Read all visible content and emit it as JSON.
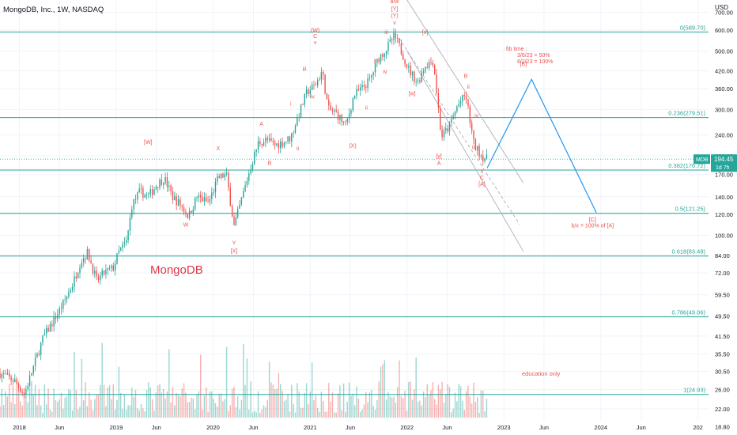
{
  "header": {
    "title": "MongoDB, Inc., 1W, NASDAQ",
    "currency": "USD"
  },
  "colors": {
    "up": "#26a69a",
    "down": "#ef5350",
    "fib": "#26a69a",
    "wave_label": "#ef5350",
    "projection": "#2196f3",
    "channel": "#b0b0b0",
    "watermark": "#e0364a",
    "price_badge": "#26a69a"
  },
  "watermark": "MongoDB",
  "note_education": "education only",
  "fib_time_note": [
    "fib time :",
    "3/6/23 = 50%",
    "8/7/23 = 100%"
  ],
  "price_badge": {
    "symbol": "MDB",
    "price": "194.45",
    "countdown": "1d 7h"
  },
  "chart_data": {
    "type": "candlestick",
    "title": "MongoDB, Inc., 1W, NASDAQ",
    "y_scale": "log",
    "ylim": [
      17.5,
      780
    ],
    "y_ticks": [
      18.8,
      22,
      26,
      30.5,
      35.5,
      41.5,
      49.5,
      59.5,
      72,
      84,
      100,
      120,
      140,
      170,
      200,
      240,
      300,
      360,
      420,
      500,
      600,
      700
    ],
    "y_tick_labels": [
      "18.80",
      "22.00",
      "26.00",
      "30.50",
      "35.50",
      "41.50",
      "49.50",
      "59.50",
      "72.00",
      "84.00",
      "100.00",
      "120.00",
      "140.00",
      "170.00",
      "200.00",
      "240.00",
      "300.00",
      "360.00",
      "420.00",
      "500.00",
      "600.00",
      "700.00"
    ],
    "x_axis_labels": [
      "2018",
      "Jun",
      "2019",
      "Jun",
      "2020",
      "Jun",
      "2021",
      "Jun",
      "2022",
      "Jun",
      "2023",
      "Jun",
      "2024",
      "Jun",
      "202"
    ],
    "x_axis_dates": [
      "2018-01-01",
      "2018-06-01",
      "2019-01-01",
      "2019-06-01",
      "2020-01-01",
      "2020-06-01",
      "2021-01-01",
      "2021-06-01",
      "2022-01-01",
      "2022-06-01",
      "2023-01-01",
      "2023-06-01",
      "2024-01-01",
      "2024-06-01",
      "2025-01-01"
    ],
    "x_range_dates": [
      "2017-10-20",
      "2025-02-10"
    ],
    "fib_levels": [
      {
        "label": "0(589.70)",
        "value": 589.7
      },
      {
        "label": "0.236(279.51)",
        "value": 279.51
      },
      {
        "label": "0.382(176.72)",
        "value": 176.72
      },
      {
        "label": "0.5(121.25)",
        "value": 121.25
      },
      {
        "label": "0.618(83.48)",
        "value": 83.48
      },
      {
        "label": "0.786(49.06)",
        "value": 49.06
      },
      {
        "label": "1(24.93)",
        "value": 24.93
      }
    ],
    "last_price": 194.45,
    "price_path": [
      [
        "2017-10-20",
        30
      ],
      [
        "2017-12-15",
        28
      ],
      [
        "2018-01-20",
        25
      ],
      [
        "2018-03-01",
        33
      ],
      [
        "2018-04-01",
        41
      ],
      [
        "2018-05-01",
        46
      ],
      [
        "2018-06-15",
        55
      ],
      [
        "2018-07-20",
        65
      ],
      [
        "2018-08-20",
        80
      ],
      [
        "2018-09-15",
        86
      ],
      [
        "2018-10-20",
        67
      ],
      [
        "2018-11-15",
        72
      ],
      [
        "2018-12-20",
        75
      ],
      [
        "2019-01-10",
        86
      ],
      [
        "2019-02-10",
        95
      ],
      [
        "2019-03-01",
        130
      ],
      [
        "2019-04-01",
        147
      ],
      [
        "2019-05-01",
        140
      ],
      [
        "2019-06-01",
        155
      ],
      [
        "2019-07-01",
        165
      ],
      [
        "2019-08-01",
        140
      ],
      [
        "2019-09-01",
        130
      ],
      [
        "2019-10-01",
        118
      ],
      [
        "2019-11-01",
        140
      ],
      [
        "2019-12-15",
        133
      ],
      [
        "2020-01-20",
        165
      ],
      [
        "2020-02-20",
        170
      ],
      [
        "2020-03-20",
        108
      ],
      [
        "2020-04-20",
        140
      ],
      [
        "2020-05-20",
        180
      ],
      [
        "2020-06-20",
        225
      ],
      [
        "2020-07-20",
        230
      ],
      [
        "2020-08-20",
        220
      ],
      [
        "2020-09-20",
        225
      ],
      [
        "2020-10-20",
        235
      ],
      [
        "2020-11-20",
        290
      ],
      [
        "2020-12-20",
        350
      ],
      [
        "2021-01-20",
        370
      ],
      [
        "2021-02-15",
        420
      ],
      [
        "2021-03-10",
        300
      ],
      [
        "2021-04-10",
        290
      ],
      [
        "2021-05-15",
        260
      ],
      [
        "2021-06-15",
        340
      ],
      [
        "2021-07-15",
        360
      ],
      [
        "2021-08-15",
        390
      ],
      [
        "2021-09-15",
        470
      ],
      [
        "2021-10-15",
        510
      ],
      [
        "2021-11-15",
        570
      ],
      [
        "2021-12-10",
        500
      ],
      [
        "2022-01-10",
        420
      ],
      [
        "2022-02-10",
        380
      ],
      [
        "2022-03-10",
        440
      ],
      [
        "2022-04-10",
        460
      ],
      [
        "2022-05-10",
        235
      ],
      [
        "2022-06-10",
        260
      ],
      [
        "2022-07-10",
        310
      ],
      [
        "2022-08-10",
        340
      ],
      [
        "2022-09-10",
        220
      ],
      [
        "2022-10-10",
        200
      ],
      [
        "2022-10-30",
        194.45
      ]
    ],
    "volume_pattern": "weekly volume bars, colored green on up weeks and red on down weeks",
    "channel_lines": [
      {
        "from": [
          "2022-01-01",
          780
        ],
        "to": [
          "2023-03-15",
          158
        ]
      },
      {
        "from": [
          "2021-12-01",
          560
        ],
        "to": [
          "2023-03-01",
          110
        ]
      },
      {
        "from": [
          "2022-01-01",
          500
        ],
        "to": [
          "2023-03-15",
          87
        ]
      }
    ],
    "projection_path": [
      [
        "2022-10-30",
        180
      ],
      [
        "2023-04-15",
        390
      ],
      [
        "2023-12-15",
        122
      ]
    ],
    "wave_labels": [
      {
        "text": "a/w",
        "date": "2021-11-15",
        "price": 760
      },
      {
        "text": "[Y]",
        "date": "2021-11-15",
        "price": 710
      },
      {
        "text": "(Y)",
        "date": "2021-11-15",
        "price": 670
      },
      {
        "text": "v",
        "date": "2021-11-15",
        "price": 630
      },
      {
        "text": "(W)",
        "date": "2021-01-20",
        "price": 590
      },
      {
        "text": "C",
        "date": "2021-01-20",
        "price": 560
      },
      {
        "text": "v",
        "date": "2021-01-20",
        "price": 530
      },
      {
        "text": "iii",
        "date": "2021-10-15",
        "price": 580
      },
      {
        "text": "i",
        "date": "2021-09-01",
        "price": 450
      },
      {
        "text": "iv",
        "date": "2021-10-10",
        "price": 410
      },
      {
        "text": "iii",
        "date": "2020-12-10",
        "price": 420
      },
      {
        "text": "iv",
        "date": "2021-01-10",
        "price": 330
      },
      {
        "text": "i",
        "date": "2020-10-20",
        "price": 310
      },
      {
        "text": "ii",
        "date": "2020-11-15",
        "price": 210
      },
      {
        "text": "ii",
        "date": "2021-08-01",
        "price": 300
      },
      {
        "text": "(X)",
        "date": "2021-06-10",
        "price": 215
      },
      {
        "text": "A",
        "date": "2020-07-01",
        "price": 260
      },
      {
        "text": "B",
        "date": "2020-08-01",
        "price": 185
      },
      {
        "text": "X",
        "date": "2020-01-20",
        "price": 210
      },
      {
        "text": "[W]",
        "date": "2019-05-01",
        "price": 222
      },
      {
        "text": "W",
        "date": "2019-09-20",
        "price": 108
      },
      {
        "text": "Y",
        "date": "2020-03-20",
        "price": 92
      },
      {
        "text": "[X]",
        "date": "2020-03-20",
        "price": 86
      },
      {
        "text": "[x]",
        "date": "2022-03-10",
        "price": 580
      },
      {
        "text": "[w]",
        "date": "2022-01-20",
        "price": 340
      },
      {
        "text": "[y]",
        "date": "2022-05-01",
        "price": 197
      },
      {
        "text": "A",
        "date": "2022-05-01",
        "price": 185
      },
      {
        "text": "B",
        "date": "2022-08-10",
        "price": 395
      },
      {
        "text": "ii",
        "date": "2022-08-20",
        "price": 360
      },
      {
        "text": "iv",
        "date": "2022-09-20",
        "price": 280
      },
      {
        "text": "iii",
        "date": "2022-09-10",
        "price": 212
      },
      {
        "text": "v",
        "date": "2022-10-10",
        "price": 172
      },
      {
        "text": "C",
        "date": "2022-10-10",
        "price": 163
      },
      {
        "text": "[A]",
        "date": "2022-10-10",
        "price": 154
      },
      {
        "text": "[B]",
        "date": "2023-03-15",
        "price": 440
      },
      {
        "text": "[C]",
        "date": "2023-12-01",
        "price": 113
      },
      {
        "text": "b/x  = 100% of [A]",
        "date": "2023-12-01",
        "price": 107
      }
    ]
  }
}
